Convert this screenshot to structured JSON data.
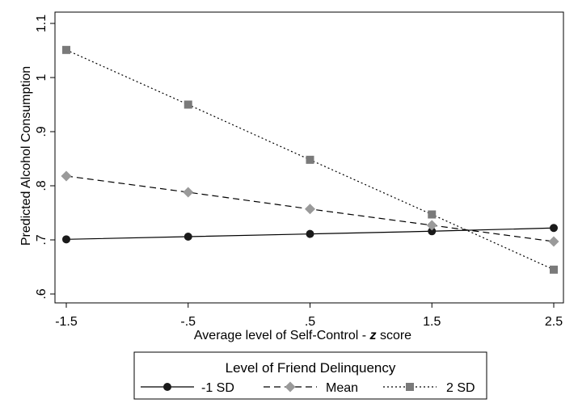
{
  "chart_data": {
    "type": "line",
    "xlabel_prefix": "Average level of Self-Control - ",
    "xlabel_italic": "z",
    "xlabel_suffix": " score",
    "ylabel": "Predicted Alcohol Consumption",
    "x": [
      -1.5,
      -0.5,
      0.5,
      1.5,
      2.5
    ],
    "xticks": [
      -1.5,
      -0.5,
      0.5,
      1.5,
      2.5
    ],
    "xtick_labels": [
      "-1.5",
      "-.5",
      ".5",
      "1.5",
      "2.5"
    ],
    "yticks": [
      0.6,
      0.7,
      0.8,
      0.9,
      1.0,
      1.1
    ],
    "ytick_labels": [
      ".6",
      ".7",
      ".8",
      ".9",
      "1",
      "1.1"
    ],
    "xlim": [
      -1.5,
      2.5
    ],
    "ylim": [
      0.6,
      1.1
    ],
    "grid": false,
    "legend": {
      "title": "Level of Friend Delinquency",
      "placement": "bottom"
    },
    "series": [
      {
        "name": "-1 SD",
        "values": [
          0.701,
          0.706,
          0.711,
          0.716,
          0.722
        ],
        "color": "#1a1a1a",
        "marker": "circle",
        "dash": "solid"
      },
      {
        "name": "Mean",
        "values": [
          0.818,
          0.788,
          0.757,
          0.727,
          0.697
        ],
        "color": "#9a9a9a",
        "marker": "diamond",
        "dash": "dashed"
      },
      {
        "name": "2 SD",
        "values": [
          1.051,
          0.95,
          0.848,
          0.747,
          0.645
        ],
        "color": "#7a7a7a",
        "marker": "square",
        "dash": "dotted"
      }
    ]
  }
}
